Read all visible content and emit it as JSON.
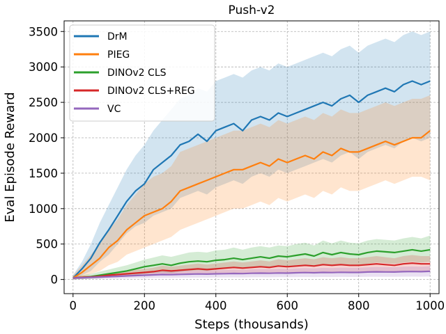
{
  "chart_data": {
    "type": "line",
    "title": "Push-v2",
    "xlabel": "Steps (thousands)",
    "ylabel": "Eval Episode Reward",
    "xlim": [
      -25,
      1025
    ],
    "ylim": [
      -200,
      3650
    ],
    "xticks": [
      0,
      200,
      400,
      600,
      800,
      1000
    ],
    "yticks": [
      0,
      500,
      1000,
      1500,
      2000,
      2500,
      3000,
      3500
    ],
    "grid": true,
    "legend_position": "top-left",
    "series": [
      {
        "name": "DrM",
        "color": "#1f77b4",
        "x": [
          0,
          25,
          50,
          75,
          100,
          125,
          150,
          175,
          200,
          225,
          250,
          275,
          300,
          325,
          350,
          375,
          400,
          425,
          450,
          475,
          500,
          525,
          550,
          575,
          600,
          625,
          650,
          675,
          700,
          725,
          750,
          775,
          800,
          825,
          850,
          875,
          900,
          925,
          950,
          975,
          1000
        ],
        "y": [
          20,
          150,
          300,
          520,
          700,
          900,
          1100,
          1250,
          1350,
          1550,
          1650,
          1750,
          1900,
          1950,
          2050,
          1950,
          2100,
          2150,
          2200,
          2100,
          2250,
          2300,
          2250,
          2350,
          2300,
          2350,
          2400,
          2450,
          2500,
          2450,
          2550,
          2600,
          2500,
          2600,
          2650,
          2700,
          2650,
          2750,
          2800,
          2750,
          2800
        ],
        "band_low": [
          0,
          60,
          120,
          250,
          350,
          500,
          650,
          750,
          800,
          900,
          950,
          1000,
          1150,
          1200,
          1250,
          1200,
          1300,
          1350,
          1400,
          1350,
          1450,
          1500,
          1450,
          1550,
          1500,
          1550,
          1600,
          1650,
          1700,
          1650,
          1750,
          1800,
          1700,
          1800,
          1850,
          1900,
          1850,
          1950,
          2000,
          1950,
          2000
        ],
        "band_high": [
          60,
          250,
          500,
          800,
          1050,
          1300,
          1550,
          1750,
          1900,
          2100,
          2250,
          2400,
          2550,
          2600,
          2700,
          2650,
          2800,
          2850,
          2900,
          2850,
          2950,
          3000,
          2950,
          3050,
          3000,
          3050,
          3100,
          3150,
          3200,
          3150,
          3250,
          3300,
          3200,
          3300,
          3350,
          3400,
          3350,
          3450,
          3500,
          3450,
          3500
        ]
      },
      {
        "name": "PIEG",
        "color": "#ff7f0e",
        "x": [
          0,
          25,
          50,
          75,
          100,
          125,
          150,
          175,
          200,
          225,
          250,
          275,
          300,
          325,
          350,
          375,
          400,
          425,
          450,
          475,
          500,
          525,
          550,
          575,
          600,
          625,
          650,
          675,
          700,
          725,
          750,
          775,
          800,
          825,
          850,
          875,
          900,
          925,
          950,
          975,
          1000
        ],
        "y": [
          20,
          100,
          200,
          300,
          450,
          550,
          700,
          800,
          900,
          950,
          1000,
          1100,
          1250,
          1300,
          1350,
          1400,
          1450,
          1500,
          1550,
          1550,
          1600,
          1650,
          1600,
          1700,
          1650,
          1700,
          1750,
          1700,
          1800,
          1750,
          1850,
          1800,
          1800,
          1850,
          1900,
          1950,
          1900,
          1950,
          2000,
          2000,
          2100
        ],
        "band_low": [
          0,
          30,
          80,
          120,
          200,
          250,
          350,
          400,
          450,
          500,
          550,
          600,
          700,
          750,
          800,
          850,
          900,
          950,
          1000,
          1000,
          1050,
          1100,
          1050,
          1150,
          1100,
          1150,
          1200,
          1150,
          1250,
          1200,
          1300,
          1250,
          1250,
          1300,
          1350,
          1400,
          1350,
          1400,
          1450,
          1450,
          1400
        ],
        "band_high": [
          60,
          200,
          350,
          500,
          700,
          850,
          1050,
          1200,
          1350,
          1450,
          1500,
          1600,
          1800,
          1850,
          1900,
          1950,
          2000,
          2050,
          2100,
          2100,
          2150,
          2200,
          2150,
          2250,
          2200,
          2250,
          2300,
          2250,
          2350,
          2300,
          2400,
          2350,
          2350,
          2400,
          2450,
          2500,
          2450,
          2500,
          2550,
          2550,
          2600
        ]
      },
      {
        "name": "DINOv2 CLS",
        "color": "#2ca02c",
        "x": [
          0,
          25,
          50,
          75,
          100,
          125,
          150,
          175,
          200,
          225,
          250,
          275,
          300,
          325,
          350,
          375,
          400,
          425,
          450,
          475,
          500,
          525,
          550,
          575,
          600,
          625,
          650,
          675,
          700,
          725,
          750,
          775,
          800,
          825,
          850,
          875,
          900,
          925,
          950,
          975,
          1000
        ],
        "y": [
          20,
          30,
          40,
          60,
          80,
          100,
          120,
          150,
          180,
          200,
          220,
          200,
          230,
          250,
          260,
          250,
          270,
          280,
          300,
          280,
          300,
          320,
          300,
          330,
          320,
          340,
          360,
          330,
          380,
          350,
          380,
          360,
          350,
          380,
          400,
          390,
          380,
          400,
          420,
          400,
          420
        ],
        "band_low": [
          0,
          5,
          10,
          20,
          30,
          40,
          50,
          60,
          80,
          90,
          100,
          90,
          110,
          120,
          130,
          120,
          140,
          150,
          160,
          150,
          160,
          180,
          160,
          190,
          180,
          200,
          210,
          190,
          220,
          200,
          220,
          210,
          200,
          220,
          240,
          230,
          220,
          240,
          250,
          240,
          250
        ],
        "band_high": [
          40,
          60,
          80,
          110,
          140,
          170,
          200,
          240,
          280,
          310,
          340,
          320,
          350,
          380,
          390,
          380,
          410,
          420,
          450,
          420,
          450,
          470,
          450,
          480,
          470,
          500,
          520,
          480,
          550,
          510,
          550,
          520,
          510,
          550,
          570,
          560,
          550,
          580,
          600,
          580,
          620
        ]
      },
      {
        "name": "DINOv2 CLS+REG",
        "color": "#d62728",
        "x": [
          0,
          25,
          50,
          75,
          100,
          125,
          150,
          175,
          200,
          225,
          250,
          275,
          300,
          325,
          350,
          375,
          400,
          425,
          450,
          475,
          500,
          525,
          550,
          575,
          600,
          625,
          650,
          675,
          700,
          725,
          750,
          775,
          800,
          825,
          850,
          875,
          900,
          925,
          950,
          975,
          1000
        ],
        "y": [
          20,
          30,
          35,
          45,
          60,
          70,
          80,
          90,
          100,
          110,
          130,
          120,
          130,
          140,
          150,
          140,
          150,
          160,
          170,
          160,
          170,
          180,
          170,
          190,
          180,
          190,
          200,
          190,
          210,
          200,
          210,
          200,
          200,
          210,
          220,
          210,
          200,
          220,
          230,
          220,
          220
        ],
        "band_low": [
          0,
          10,
          15,
          20,
          30,
          35,
          40,
          45,
          50,
          55,
          65,
          60,
          65,
          70,
          75,
          70,
          75,
          80,
          85,
          80,
          85,
          90,
          85,
          95,
          90,
          95,
          100,
          95,
          105,
          100,
          105,
          100,
          100,
          105,
          110,
          105,
          100,
          110,
          115,
          110,
          110
        ],
        "band_high": [
          40,
          50,
          55,
          70,
          90,
          105,
          120,
          135,
          150,
          165,
          195,
          180,
          195,
          210,
          225,
          210,
          225,
          240,
          255,
          240,
          255,
          270,
          255,
          285,
          270,
          285,
          300,
          285,
          315,
          300,
          315,
          300,
          300,
          315,
          330,
          315,
          300,
          330,
          345,
          330,
          330
        ]
      },
      {
        "name": "VC",
        "color": "#9467bd",
        "x": [
          0,
          25,
          50,
          75,
          100,
          125,
          150,
          175,
          200,
          225,
          250,
          275,
          300,
          325,
          350,
          375,
          400,
          425,
          450,
          475,
          500,
          525,
          550,
          575,
          600,
          625,
          650,
          675,
          700,
          725,
          750,
          775,
          800,
          825,
          850,
          875,
          900,
          925,
          950,
          975,
          1000
        ],
        "y": [
          20,
          25,
          30,
          35,
          40,
          45,
          50,
          55,
          60,
          65,
          70,
          68,
          72,
          75,
          78,
          76,
          80,
          82,
          85,
          83,
          88,
          90,
          88,
          92,
          90,
          95,
          98,
          95,
          100,
          98,
          102,
          100,
          100,
          105,
          108,
          106,
          105,
          110,
          112,
          110,
          115
        ],
        "band_low": [
          0,
          5,
          8,
          10,
          12,
          14,
          16,
          18,
          20,
          22,
          24,
          23,
          25,
          26,
          27,
          26,
          28,
          29,
          30,
          29,
          31,
          32,
          31,
          33,
          32,
          34,
          35,
          34,
          36,
          35,
          37,
          36,
          36,
          38,
          39,
          38,
          38,
          40,
          41,
          40,
          42
        ],
        "band_high": [
          40,
          45,
          52,
          60,
          68,
          76,
          84,
          92,
          100,
          108,
          116,
          113,
          119,
          124,
          129,
          126,
          132,
          135,
          140,
          137,
          145,
          148,
          145,
          151,
          148,
          156,
          161,
          156,
          164,
          161,
          167,
          164,
          164,
          172,
          177,
          174,
          172,
          180,
          183,
          180,
          188
        ]
      }
    ]
  }
}
